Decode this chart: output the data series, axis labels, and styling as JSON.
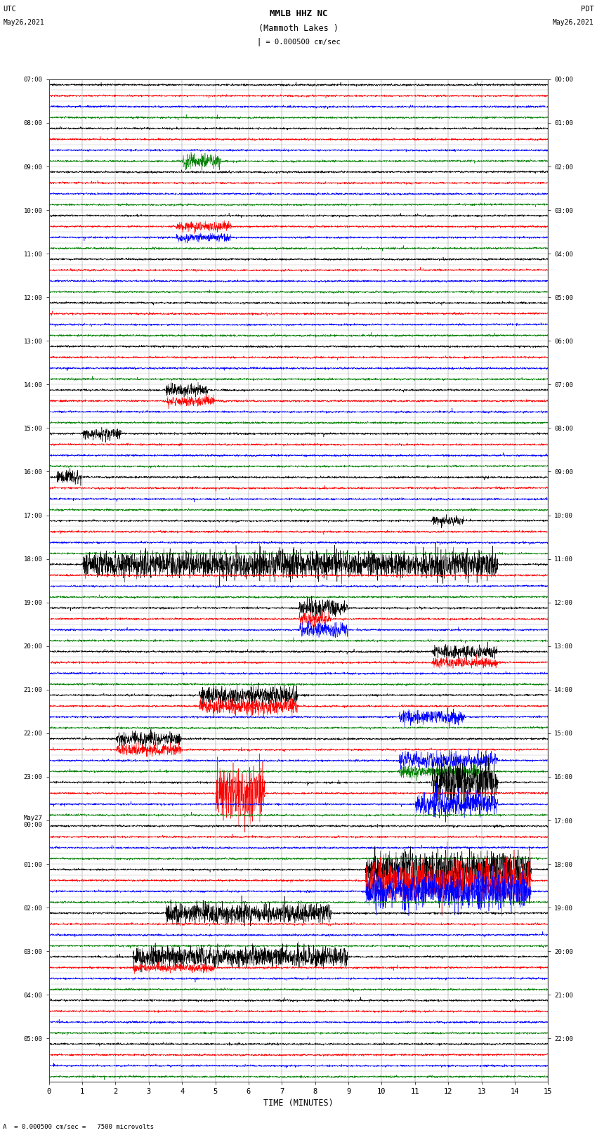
{
  "title_line1": "MMLB HHZ NC",
  "title_line2": "(Mammoth Lakes )",
  "scale_label": "= 0.000500 cm/sec",
  "bottom_label": "A  = 0.000500 cm/sec =   7500 microvolts",
  "left_header_line1": "UTC",
  "left_header_line2": "May26,2021",
  "right_header_line1": "PDT",
  "right_header_line2": "May26,2021",
  "xlabel": "TIME (MINUTES)",
  "time_max": 15,
  "bg_color": "#ffffff",
  "row_colors": [
    "#000000",
    "#ff0000",
    "#0000ff",
    "#008000"
  ],
  "num_rows": 92,
  "figure_width": 8.5,
  "figure_height": 16.13,
  "dpi": 100,
  "events": {
    "7": [
      4.0,
      5.2,
      0.7
    ],
    "13": [
      3.8,
      5.5,
      0.5
    ],
    "14": [
      3.8,
      5.5,
      0.4
    ],
    "28": [
      3.5,
      4.8,
      0.6
    ],
    "29": [
      3.5,
      5.0,
      0.5
    ],
    "32": [
      1.0,
      2.2,
      0.6
    ],
    "36": [
      0.2,
      1.0,
      0.7
    ],
    "40": [
      11.5,
      12.5,
      0.5
    ],
    "44": [
      1.0,
      13.5,
      1.4
    ],
    "48": [
      7.5,
      9.0,
      0.8
    ],
    "49": [
      7.5,
      8.5,
      0.7
    ],
    "50": [
      7.5,
      9.0,
      0.7
    ],
    "52": [
      11.5,
      13.5,
      0.7
    ],
    "53": [
      11.5,
      13.5,
      0.5
    ],
    "56": [
      4.5,
      7.5,
      0.9
    ],
    "57": [
      4.5,
      7.5,
      0.8
    ],
    "58": [
      10.5,
      12.5,
      0.7
    ],
    "60": [
      2.0,
      4.0,
      0.7
    ],
    "61": [
      2.0,
      4.0,
      0.6
    ],
    "62": [
      10.5,
      13.5,
      0.8
    ],
    "63": [
      10.5,
      13.0,
      0.6
    ],
    "64": [
      11.5,
      13.5,
      2.5
    ],
    "65": [
      5.0,
      6.5,
      3.0
    ],
    "66": [
      11.0,
      13.5,
      1.2
    ],
    "72": [
      9.5,
      14.5,
      2.0
    ],
    "73": [
      9.5,
      14.5,
      2.2
    ],
    "74": [
      9.5,
      14.5,
      1.8
    ],
    "76": [
      3.5,
      8.5,
      1.0
    ],
    "80": [
      2.5,
      9.0,
      1.0
    ],
    "81": [
      2.5,
      5.0,
      0.4
    ]
  }
}
